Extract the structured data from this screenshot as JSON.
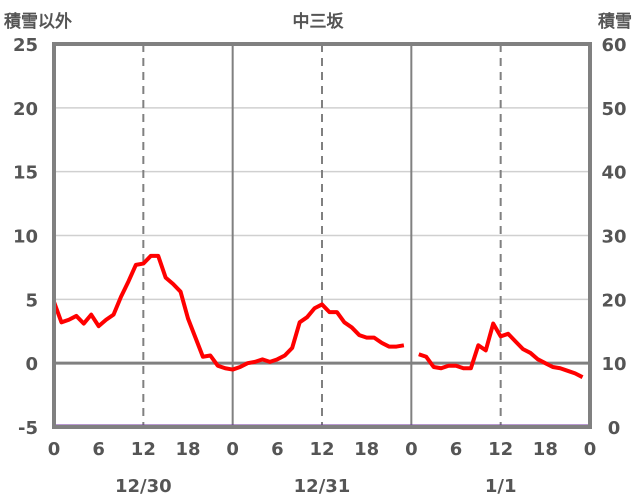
{
  "chart_data": {
    "type": "line",
    "title": "中三坂",
    "ylabel_left": "積雪以外",
    "ylabel_right": "積雪",
    "ylim_left": [
      -5,
      25
    ],
    "yticks_left": [
      -5,
      0,
      5,
      10,
      15,
      20,
      25
    ],
    "ylim_right": [
      0,
      60
    ],
    "yticks_right": [
      0,
      10,
      20,
      30,
      40,
      50,
      60
    ],
    "xlim_hours": [
      0,
      72
    ],
    "xtick_labels": [
      "0",
      "6",
      "12",
      "18",
      "0",
      "6",
      "12",
      "18",
      "0",
      "6",
      "12",
      "18",
      "0"
    ],
    "date_labels": [
      "12/30",
      "12/31",
      "1/1"
    ],
    "grid": true,
    "series": [
      {
        "name": "積雪以外",
        "axis": "left",
        "color": "#ff0000",
        "values": [
          4.8,
          3.2,
          3.4,
          3.7,
          3.1,
          3.8,
          2.9,
          3.4,
          3.8,
          5.2,
          6.4,
          7.7,
          7.8,
          8.4,
          8.4,
          6.7,
          6.2,
          5.6,
          3.5,
          2.0,
          0.5,
          0.6,
          -0.2,
          -0.4,
          -0.5,
          -0.3,
          0.0,
          0.1,
          0.3,
          0.1,
          0.3,
          0.6,
          1.2,
          3.2,
          3.6,
          4.3,
          4.6,
          4.0,
          4.0,
          3.2,
          2.8,
          2.2,
          2.0,
          2.0,
          1.6,
          1.3,
          1.3,
          1.4,
          null,
          0.7,
          0.5,
          -0.3,
          -0.4,
          -0.2,
          -0.2,
          -0.4,
          -0.4,
          1.4,
          1.0,
          3.1,
          2.1,
          2.3,
          1.7,
          1.1,
          0.8,
          0.3,
          0.0,
          -0.3,
          -0.4,
          -0.6,
          -0.8,
          -1.1
        ]
      },
      {
        "name": "積雪",
        "axis": "right",
        "color": "#7030a0",
        "values_constant": 0
      }
    ]
  }
}
